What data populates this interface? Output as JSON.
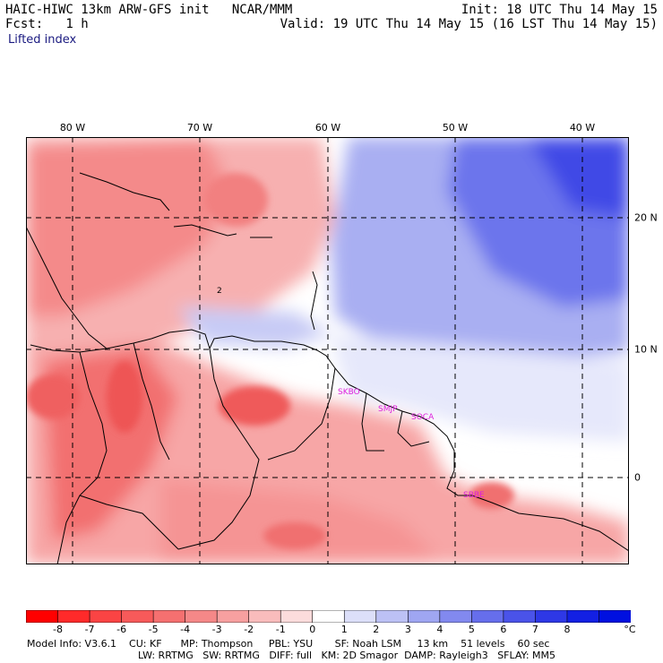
{
  "header": {
    "title": "HAIC-HIWC 13km ARW-GFS init   NCAR/MMM",
    "init": "Init: 18 UTC Thu 14 May 15",
    "fcst": "Fcst:   1 h",
    "valid": "Valid: 19 UTC Thu 14 May 15 (16 LST Thu 14 May 15)",
    "field": "Lifted index"
  },
  "map": {
    "lon_labels": [
      "80 W",
      "70 W",
      "60 W",
      "50 W",
      "40 W"
    ],
    "lat_labels": [
      "20 N",
      "10 N",
      "0"
    ],
    "stations": [
      "SKBO",
      "SMJP",
      "SOCA",
      "SBBE"
    ],
    "contour_label": "2",
    "colors": {
      "strong_neg": "#ff2020",
      "neg": "#f57878",
      "weak_neg": "#f7b8b8",
      "neutral": "#ffffff",
      "weak_pos": "#c8cdf7",
      "pos": "#7f87ef",
      "strong_pos": "#3a42e6",
      "station": "#dd22dd"
    }
  },
  "colorbar": {
    "labels": [
      "-8",
      "-7",
      "-6",
      "-5",
      "-4",
      "-3",
      "-2",
      "-1",
      "0",
      "1",
      "2",
      "3",
      "4",
      "5",
      "6",
      "7",
      "8"
    ],
    "unit": "°C",
    "colors": [
      "#ff0000",
      "#ff2a2a",
      "#fa4444",
      "#f75a5a",
      "#f57070",
      "#f58888",
      "#f7a0a0",
      "#f9bcbc",
      "#fcdcdc",
      "#ffffff",
      "#dcdff9",
      "#bcc1f5",
      "#9fa6f2",
      "#8289ef",
      "#666eec",
      "#4a53e9",
      "#2e38e6",
      "#1320e3",
      "#0010e0"
    ]
  },
  "footer": {
    "line1": "Model Info: V3.6.1    CU: KF      MP: Thompson     PBL: YSU       SF: Noah LSM     13 km    51 levels    60 sec",
    "line2": "LW: RRTMG   SW: RRTMG   DIFF: full   KM: 2D Smagor  DAMP: Rayleigh3   SFLAY: MM5"
  }
}
